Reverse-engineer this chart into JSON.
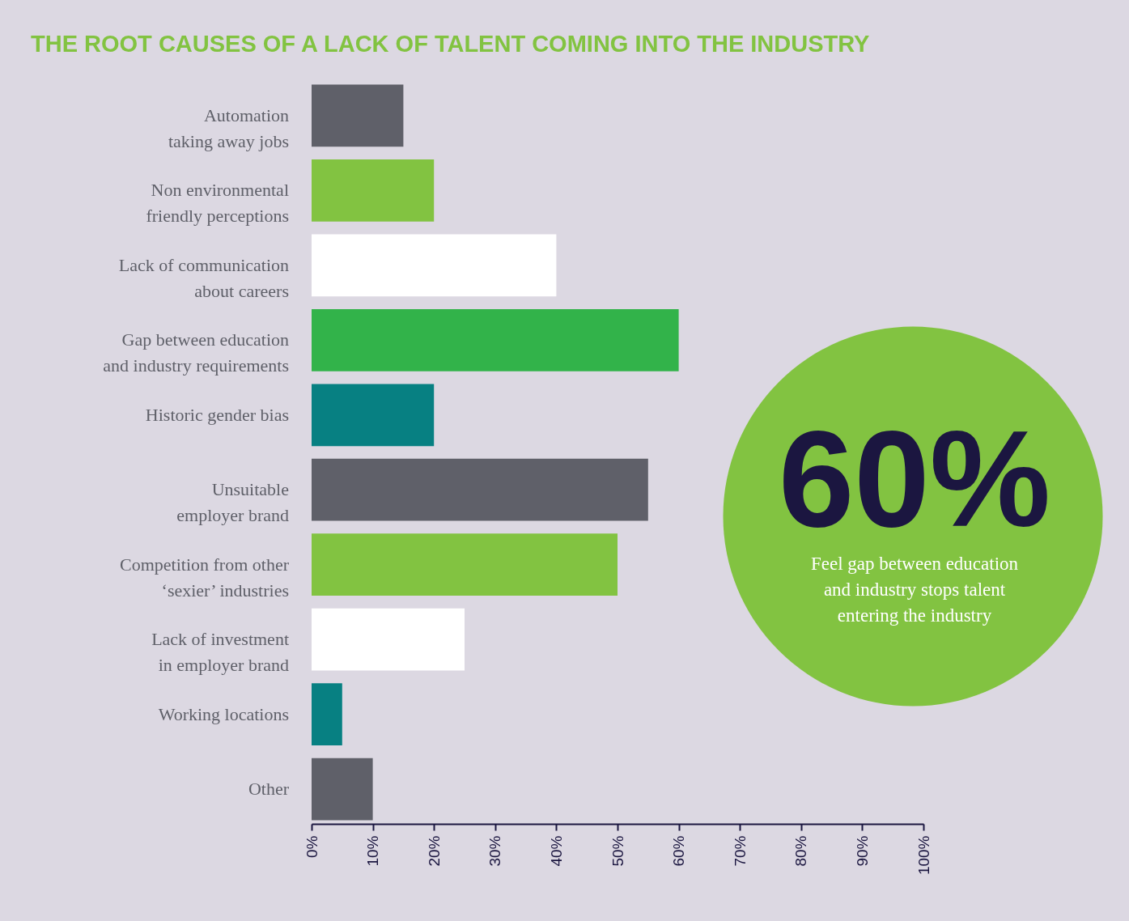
{
  "chart_data": {
    "type": "bar",
    "orientation": "horizontal",
    "title": "THE ROOT CAUSES OF A LACK OF TALENT COMING INTO THE INDUSTRY",
    "categories": [
      "Automation taking away jobs",
      "Non environmental friendly perceptions",
      "Lack of communication about careers",
      "Gap between education and industry requirements",
      "Historic gender bias",
      "Unsuitable employer brand",
      "Competition from other ‘sexier’ industries",
      "Lack of investment in employer brand",
      "Working locations",
      "Other"
    ],
    "values": [
      15,
      20,
      40,
      60,
      20,
      55,
      50,
      25,
      5,
      10
    ],
    "colors": [
      "#5f6069",
      "#82c341",
      "#ffffff",
      "#32b34a",
      "#078082",
      "#5f6069",
      "#82c341",
      "#ffffff",
      "#078082",
      "#5f6069"
    ],
    "xlim": [
      0,
      100
    ],
    "xticks": [
      {
        "value": 0,
        "label": "0%"
      },
      {
        "value": 10,
        "label": "10%"
      },
      {
        "value": 20,
        "label": "20%"
      },
      {
        "value": 30,
        "label": "30%"
      },
      {
        "value": 40,
        "label": "40%"
      },
      {
        "value": 50,
        "label": "50%"
      },
      {
        "value": 60,
        "label": "60%"
      },
      {
        "value": 70,
        "label": "70%"
      },
      {
        "value": 80,
        "label": "80%"
      },
      {
        "value": 90,
        "label": "90%"
      },
      {
        "value": 100,
        "label": "100%"
      }
    ],
    "annotations": [
      "60%",
      "Feel gap between education and industry stops talent entering the industry"
    ]
  }
}
